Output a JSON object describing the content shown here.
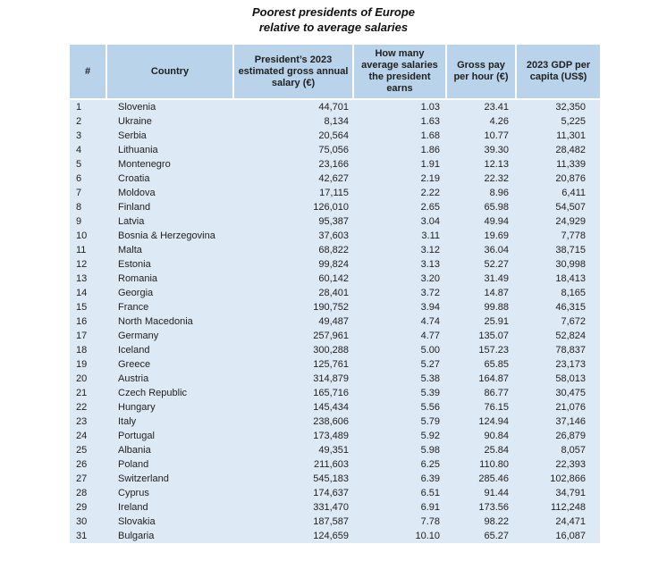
{
  "title": {
    "line1": "Poorest presidents of Europe",
    "line2": "relative to average salaries"
  },
  "colors": {
    "header_bg": "#b8d3ea",
    "body_bg": "#dde9f5",
    "text": "#1f1f1f"
  },
  "chart_data": {
    "type": "table",
    "title": "Poorest presidents of Europe relative to average salaries",
    "legend_position": "none",
    "grid": "header-separators-only",
    "columns": [
      "#",
      "Country",
      "President’s 2023 estimated gross annual salary (€)",
      "How many average salaries the president earns",
      "Gross pay per hour (€)",
      "2023 GDP per capita (US$)"
    ],
    "rows": [
      [
        "1",
        "Slovenia",
        "44,701",
        "1.03",
        "23.41",
        "32,350"
      ],
      [
        "2",
        "Ukraine",
        "8,134",
        "1.63",
        "4.26",
        "5,225"
      ],
      [
        "3",
        "Serbia",
        "20,564",
        "1.68",
        "10.77",
        "11,301"
      ],
      [
        "4",
        "Lithuania",
        "75,056",
        "1.86",
        "39.30",
        "28,482"
      ],
      [
        "5",
        "Montenegro",
        "23,166",
        "1.91",
        "12.13",
        "11,339"
      ],
      [
        "6",
        "Croatia",
        "42,627",
        "2.19",
        "22.32",
        "20,876"
      ],
      [
        "7",
        "Moldova",
        "17,115",
        "2.22",
        "8.96",
        "6,411"
      ],
      [
        "8",
        "Finland",
        "126,010",
        "2.65",
        "65.98",
        "54,507"
      ],
      [
        "9",
        "Latvia",
        "95,387",
        "3.04",
        "49.94",
        "24,929"
      ],
      [
        "10",
        "Bosnia & Herzegovina",
        "37,603",
        "3.11",
        "19.69",
        "7,778"
      ],
      [
        "11",
        "Malta",
        "68,822",
        "3.12",
        "36.04",
        "38,715"
      ],
      [
        "12",
        "Estonia",
        "99,824",
        "3.13",
        "52.27",
        "30,998"
      ],
      [
        "13",
        "Romania",
        "60,142",
        "3.20",
        "31.49",
        "18,413"
      ],
      [
        "14",
        "Georgia",
        "28,401",
        "3.72",
        "14.87",
        "8,165"
      ],
      [
        "15",
        "France",
        "190,752",
        "3.94",
        "99.88",
        "46,315"
      ],
      [
        "16",
        "North Macedonia",
        "49,487",
        "4.74",
        "25.91",
        "7,672"
      ],
      [
        "17",
        "Germany",
        "257,961",
        "4.77",
        "135.07",
        "52,824"
      ],
      [
        "18",
        "Iceland",
        "300,288",
        "5.00",
        "157.23",
        "78,837"
      ],
      [
        "19",
        "Greece",
        "125,761",
        "5.27",
        "65.85",
        "23,173"
      ],
      [
        "20",
        "Austria",
        "314,879",
        "5.38",
        "164.87",
        "58,013"
      ],
      [
        "21",
        "Czech Republic",
        "165,716",
        "5.39",
        "86.77",
        "30,475"
      ],
      [
        "22",
        "Hungary",
        "145,434",
        "5.56",
        "76.15",
        "21,076"
      ],
      [
        "23",
        "Italy",
        "238,606",
        "5.79",
        "124.94",
        "37,146"
      ],
      [
        "24",
        "Portugal",
        "173,489",
        "5.92",
        "90.84",
        "26,879"
      ],
      [
        "25",
        "Albania",
        "49,351",
        "5.98",
        "25.84",
        "8,057"
      ],
      [
        "26",
        "Poland",
        "211,603",
        "6.25",
        "110.80",
        "22,393"
      ],
      [
        "27",
        "Switzerland",
        "545,183",
        "6.39",
        "285.46",
        "102,866"
      ],
      [
        "28",
        "Cyprus",
        "174,637",
        "6.51",
        "91.44",
        "34,791"
      ],
      [
        "29",
        "Ireland",
        "331,470",
        "6.91",
        "173.56",
        "112,248"
      ],
      [
        "30",
        "Slovakia",
        "187,587",
        "7.78",
        "98.22",
        "24,471"
      ],
      [
        "31",
        "Bulgaria",
        "124,659",
        "10.10",
        "65.27",
        "16,087"
      ]
    ]
  }
}
